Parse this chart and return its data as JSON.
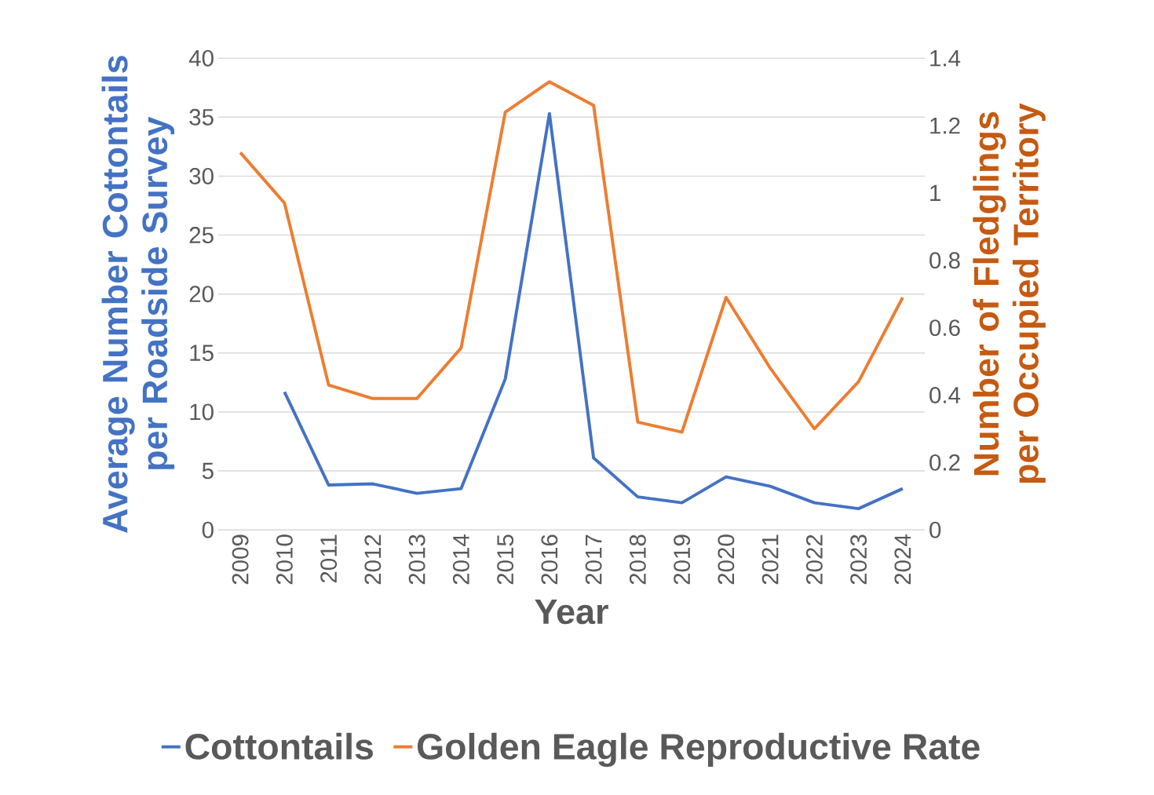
{
  "chart_data": {
    "type": "line",
    "categories": [
      "2009",
      "2010",
      "2011",
      "2012",
      "2013",
      "2014",
      "2015",
      "2016",
      "2017",
      "2018",
      "2019",
      "2020",
      "2021",
      "2022",
      "2023",
      "2024"
    ],
    "series": [
      {
        "name": "Cottontails",
        "color": "#4472c4",
        "axis": "y",
        "values": [
          null,
          11.7,
          3.8,
          3.9,
          3.1,
          3.5,
          12.8,
          35.3,
          6.1,
          2.8,
          2.3,
          4.5,
          3.7,
          2.3,
          1.8,
          3.5
        ]
      },
      {
        "name": "Golden Eagle Reproductive Rate",
        "color": "#ed7d31",
        "axis": "y2",
        "values": [
          1.12,
          0.97,
          0.43,
          0.39,
          0.39,
          0.54,
          1.24,
          1.33,
          1.26,
          0.32,
          0.29,
          0.69,
          0.48,
          0.3,
          0.44,
          0.69
        ]
      }
    ],
    "xlabel": "Year",
    "ylabel": "Average Number Cottontails per Roadside Survey",
    "y2label": "Number of Fledglings per Occupied Territory",
    "ylim": [
      0,
      40
    ],
    "yticks": [
      0,
      5,
      10,
      15,
      20,
      25,
      30,
      35,
      40
    ],
    "y2lim": [
      0,
      1.4
    ],
    "y2ticks": [
      0,
      0.2,
      0.4,
      0.6,
      0.8,
      1,
      1.2,
      1.4
    ],
    "grid": "y",
    "legend": "bottom",
    "marker": "none",
    "line_style": "solid"
  }
}
